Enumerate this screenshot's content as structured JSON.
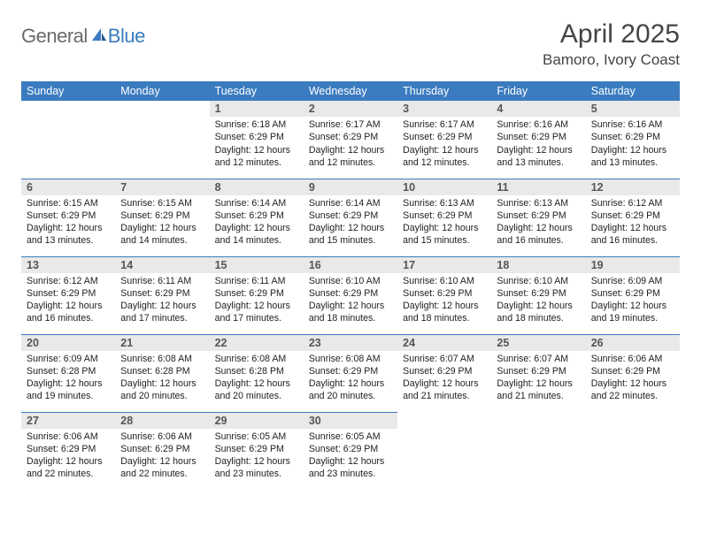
{
  "brand": {
    "part1": "General",
    "part2": "Blue"
  },
  "title": "April 2025",
  "location": "Bamoro, Ivory Coast",
  "colors": {
    "header_bg": "#3b7bbf",
    "header_text": "#ffffff",
    "daynum_bg": "#e9e9e9",
    "border": "#3b7bbf",
    "logo_gray": "#6a6a6a",
    "logo_blue": "#3b7bbf"
  },
  "weekdays": [
    "Sunday",
    "Monday",
    "Tuesday",
    "Wednesday",
    "Thursday",
    "Friday",
    "Saturday"
  ],
  "weeks": [
    [
      null,
      null,
      {
        "n": "1",
        "sr": "6:18 AM",
        "ss": "6:29 PM",
        "dl": "12 hours and 12 minutes."
      },
      {
        "n": "2",
        "sr": "6:17 AM",
        "ss": "6:29 PM",
        "dl": "12 hours and 12 minutes."
      },
      {
        "n": "3",
        "sr": "6:17 AM",
        "ss": "6:29 PM",
        "dl": "12 hours and 12 minutes."
      },
      {
        "n": "4",
        "sr": "6:16 AM",
        "ss": "6:29 PM",
        "dl": "12 hours and 13 minutes."
      },
      {
        "n": "5",
        "sr": "6:16 AM",
        "ss": "6:29 PM",
        "dl": "12 hours and 13 minutes."
      }
    ],
    [
      {
        "n": "6",
        "sr": "6:15 AM",
        "ss": "6:29 PM",
        "dl": "12 hours and 13 minutes."
      },
      {
        "n": "7",
        "sr": "6:15 AM",
        "ss": "6:29 PM",
        "dl": "12 hours and 14 minutes."
      },
      {
        "n": "8",
        "sr": "6:14 AM",
        "ss": "6:29 PM",
        "dl": "12 hours and 14 minutes."
      },
      {
        "n": "9",
        "sr": "6:14 AM",
        "ss": "6:29 PM",
        "dl": "12 hours and 15 minutes."
      },
      {
        "n": "10",
        "sr": "6:13 AM",
        "ss": "6:29 PM",
        "dl": "12 hours and 15 minutes."
      },
      {
        "n": "11",
        "sr": "6:13 AM",
        "ss": "6:29 PM",
        "dl": "12 hours and 16 minutes."
      },
      {
        "n": "12",
        "sr": "6:12 AM",
        "ss": "6:29 PM",
        "dl": "12 hours and 16 minutes."
      }
    ],
    [
      {
        "n": "13",
        "sr": "6:12 AM",
        "ss": "6:29 PM",
        "dl": "12 hours and 16 minutes."
      },
      {
        "n": "14",
        "sr": "6:11 AM",
        "ss": "6:29 PM",
        "dl": "12 hours and 17 minutes."
      },
      {
        "n": "15",
        "sr": "6:11 AM",
        "ss": "6:29 PM",
        "dl": "12 hours and 17 minutes."
      },
      {
        "n": "16",
        "sr": "6:10 AM",
        "ss": "6:29 PM",
        "dl": "12 hours and 18 minutes."
      },
      {
        "n": "17",
        "sr": "6:10 AM",
        "ss": "6:29 PM",
        "dl": "12 hours and 18 minutes."
      },
      {
        "n": "18",
        "sr": "6:10 AM",
        "ss": "6:29 PM",
        "dl": "12 hours and 18 minutes."
      },
      {
        "n": "19",
        "sr": "6:09 AM",
        "ss": "6:29 PM",
        "dl": "12 hours and 19 minutes."
      }
    ],
    [
      {
        "n": "20",
        "sr": "6:09 AM",
        "ss": "6:28 PM",
        "dl": "12 hours and 19 minutes."
      },
      {
        "n": "21",
        "sr": "6:08 AM",
        "ss": "6:28 PM",
        "dl": "12 hours and 20 minutes."
      },
      {
        "n": "22",
        "sr": "6:08 AM",
        "ss": "6:28 PM",
        "dl": "12 hours and 20 minutes."
      },
      {
        "n": "23",
        "sr": "6:08 AM",
        "ss": "6:29 PM",
        "dl": "12 hours and 20 minutes."
      },
      {
        "n": "24",
        "sr": "6:07 AM",
        "ss": "6:29 PM",
        "dl": "12 hours and 21 minutes."
      },
      {
        "n": "25",
        "sr": "6:07 AM",
        "ss": "6:29 PM",
        "dl": "12 hours and 21 minutes."
      },
      {
        "n": "26",
        "sr": "6:06 AM",
        "ss": "6:29 PM",
        "dl": "12 hours and 22 minutes."
      }
    ],
    [
      {
        "n": "27",
        "sr": "6:06 AM",
        "ss": "6:29 PM",
        "dl": "12 hours and 22 minutes."
      },
      {
        "n": "28",
        "sr": "6:06 AM",
        "ss": "6:29 PM",
        "dl": "12 hours and 22 minutes."
      },
      {
        "n": "29",
        "sr": "6:05 AM",
        "ss": "6:29 PM",
        "dl": "12 hours and 23 minutes."
      },
      {
        "n": "30",
        "sr": "6:05 AM",
        "ss": "6:29 PM",
        "dl": "12 hours and 23 minutes."
      },
      null,
      null,
      null
    ]
  ],
  "labels": {
    "sunrise": "Sunrise:",
    "sunset": "Sunset:",
    "daylight": "Daylight:"
  }
}
